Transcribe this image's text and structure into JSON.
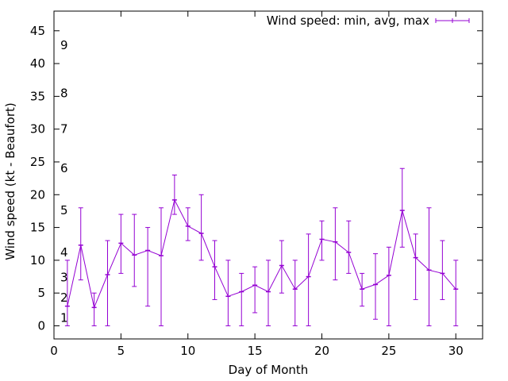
{
  "chart_data": {
    "type": "line",
    "xlabel": "Day of Month",
    "ylabel": "Wind speed (kt - Beaufort)",
    "xlim": [
      0,
      32
    ],
    "ylim": [
      -2,
      48
    ],
    "x_ticks": [
      0,
      5,
      10,
      15,
      20,
      25,
      30
    ],
    "y_ticks": [
      0,
      5,
      10,
      15,
      20,
      25,
      30,
      35,
      40,
      45
    ],
    "grid": false,
    "legend_position": "top-right",
    "series_color": "#9400d3",
    "beaufort_labels": [
      {
        "label": "1",
        "y": 1.2
      },
      {
        "label": "2",
        "y": 4.3
      },
      {
        "label": "3",
        "y": 7.4
      },
      {
        "label": "4",
        "y": 11.2
      },
      {
        "label": "5",
        "y": 17.6
      },
      {
        "label": "6",
        "y": 24.0
      },
      {
        "label": "7",
        "y": 30.0
      },
      {
        "label": "8",
        "y": 35.5
      },
      {
        "label": "9",
        "y": 42.8
      }
    ],
    "series": [
      {
        "name": "Wind speed: min, avg, max",
        "x": [
          1,
          2,
          3,
          4,
          5,
          6,
          7,
          8,
          9,
          10,
          11,
          12,
          13,
          14,
          15,
          16,
          17,
          18,
          19,
          20,
          21,
          22,
          23,
          24,
          25,
          26,
          27,
          28,
          29,
          30
        ],
        "avg": [
          3,
          12.3,
          2.8,
          7.8,
          12.6,
          10.8,
          11.5,
          10.7,
          19.2,
          15.2,
          14.1,
          9.0,
          4.5,
          5.2,
          6.2,
          5.2,
          9.2,
          5.6,
          7.5,
          13.2,
          12.8,
          11.2,
          5.6,
          6.3,
          7.7,
          17.6,
          10.4,
          8.5,
          8.0,
          5.6
        ],
        "min": [
          0,
          7,
          0,
          0,
          8,
          6,
          3,
          0,
          17,
          13,
          10,
          4,
          0,
          0,
          2,
          0,
          5,
          0,
          0,
          10,
          7,
          8,
          3,
          1,
          0,
          12,
          4,
          0,
          4,
          0
        ],
        "max": [
          10,
          18,
          5,
          13,
          17,
          17,
          15,
          18,
          23,
          18,
          20,
          13,
          10,
          8,
          9,
          10,
          13,
          10,
          14,
          16,
          18,
          16,
          8,
          11,
          12,
          24,
          14,
          18,
          13,
          10
        ]
      }
    ]
  }
}
